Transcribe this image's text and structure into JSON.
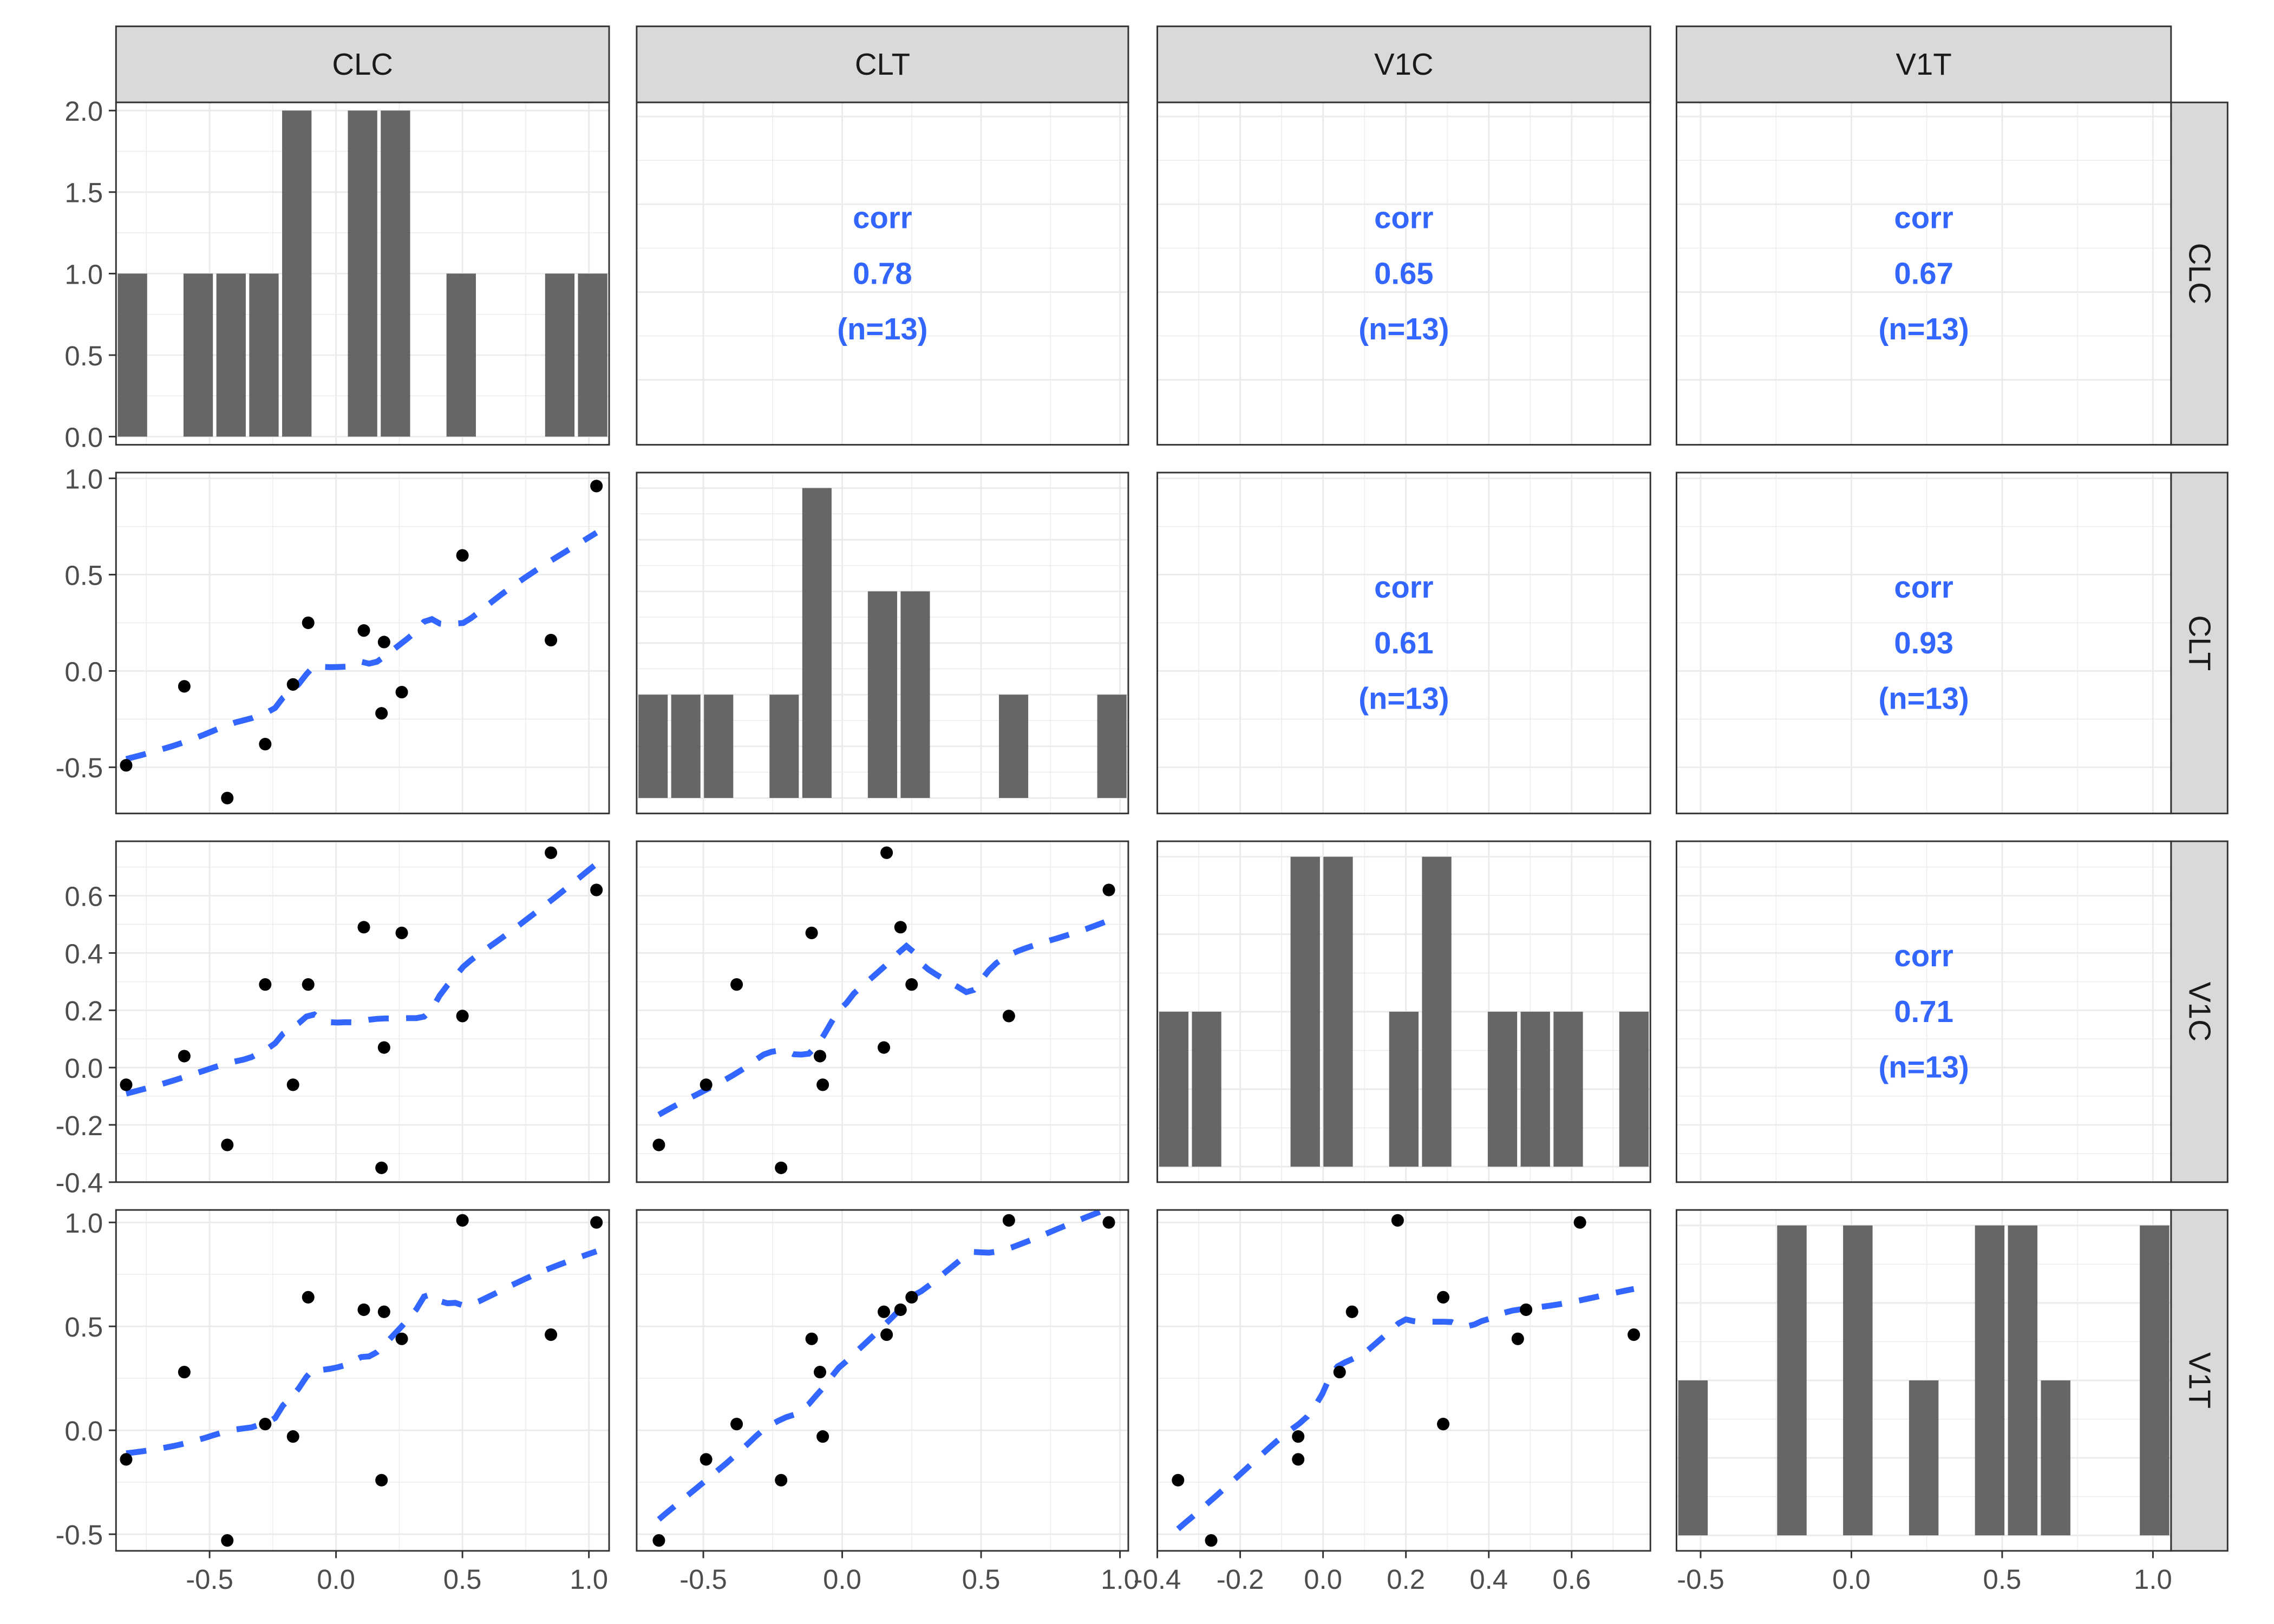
{
  "chart_data": {
    "type": "scatter",
    "title": "",
    "layout": "pairs-matrix",
    "variables": [
      "CLC",
      "CLT",
      "V1C",
      "V1T"
    ],
    "observations": {
      "CLC": [
        -0.83,
        -0.6,
        -0.43,
        -0.28,
        -0.17,
        -0.11,
        0.11,
        0.18,
        0.19,
        0.26,
        0.5,
        0.85,
        1.03
      ],
      "CLT": [
        -0.49,
        -0.08,
        -0.66,
        -0.38,
        -0.07,
        0.25,
        0.21,
        -0.22,
        0.15,
        -0.11,
        0.6,
        0.16,
        0.96
      ],
      "V1C": [
        -0.06,
        0.04,
        -0.27,
        0.29,
        -0.06,
        0.29,
        0.49,
        -0.35,
        0.07,
        0.47,
        0.18,
        0.75,
        0.62
      ],
      "V1T": [
        -0.14,
        0.28,
        -0.53,
        0.03,
        -0.03,
        0.64,
        0.58,
        -0.24,
        0.57,
        0.44,
        1.01,
        0.46,
        1.0
      ]
    },
    "axis_ranges": {
      "CLC": [
        -0.87,
        1.08
      ],
      "CLT": [
        -0.74,
        1.03
      ],
      "V1C": [
        -0.4,
        0.79
      ],
      "V1T": [
        -0.58,
        1.06
      ]
    },
    "x_tick_labels": {
      "CLC": [
        "-0.5",
        "0.0",
        "0.5",
        "1.0"
      ],
      "CLT": [
        "-0.5",
        "0.0",
        "0.5",
        "1.0"
      ],
      "V1C": [
        "-0.4",
        "-0.2",
        "0.0",
        "0.2",
        "0.4",
        "0.6"
      ],
      "V1T": [
        "-0.5",
        "0.0",
        "0.5",
        "1.0"
      ]
    },
    "x_ticks": {
      "CLC": [
        -0.5,
        0.0,
        0.5,
        1.0
      ],
      "CLT": [
        -0.5,
        0.0,
        0.5,
        1.0
      ],
      "V1C": [
        -0.4,
        -0.2,
        0.0,
        0.2,
        0.4,
        0.6
      ],
      "V1T": [
        -0.5,
        0.0,
        0.5,
        1.0
      ]
    },
    "y_axis_left": [
      {
        "row": "CLC",
        "range": [
          -0.05,
          2.05
        ],
        "ticks": [
          0.0,
          0.5,
          1.0,
          1.5,
          2.0
        ],
        "labels": [
          "0.0",
          "0.5",
          "1.0",
          "1.5",
          "2.0"
        ]
      },
      {
        "row": "CLT",
        "ticks": [
          -0.5,
          0.0,
          0.5,
          1.0
        ],
        "labels": [
          "-0.5",
          "0.0",
          "0.5",
          "1.0"
        ]
      },
      {
        "row": "V1C",
        "ticks": [
          -0.4,
          -0.2,
          0.0,
          0.2,
          0.4,
          0.6
        ],
        "labels": [
          "-0.4",
          "-0.2",
          "0.0",
          "0.2",
          "0.4",
          "0.6"
        ]
      },
      {
        "row": "V1T",
        "ticks": [
          -0.5,
          0.0,
          0.5,
          1.0
        ],
        "labels": [
          "-0.5",
          "0.0",
          "0.5",
          "1.0"
        ]
      }
    ],
    "histograms": {
      "CLC": {
        "bins_range": [
          -0.87,
          1.08
        ],
        "counts": [
          1,
          0,
          1,
          1,
          1,
          2,
          0,
          2,
          2,
          0,
          1,
          0,
          0,
          1,
          1
        ]
      },
      "CLT": {
        "bins_range": [
          -0.74,
          1.03
        ],
        "counts": [
          1,
          1,
          1,
          0,
          1,
          3,
          0,
          2,
          2,
          0,
          0,
          1,
          0,
          0,
          1
        ],
        "max_count": 3
      },
      "V1C": {
        "bins_range": [
          -0.4,
          0.79
        ],
        "counts": [
          1,
          1,
          0,
          0,
          2,
          2,
          0,
          1,
          2,
          0,
          1,
          1,
          1,
          0,
          1
        ],
        "max_count": 2
      },
      "V1T": {
        "bins_range": [
          -0.58,
          1.06
        ],
        "counts": [
          1,
          0,
          0,
          2,
          0,
          2,
          0,
          1,
          0,
          2,
          2,
          1,
          0,
          0,
          2
        ],
        "max_count": 2
      }
    },
    "correlations": [
      {
        "row": "CLC",
        "col": "CLT",
        "label": "corr",
        "value": "0.78",
        "n": "(n=13)"
      },
      {
        "row": "CLC",
        "col": "V1C",
        "label": "corr",
        "value": "0.65",
        "n": "(n=13)"
      },
      {
        "row": "CLC",
        "col": "V1T",
        "label": "corr",
        "value": "0.67",
        "n": "(n=13)"
      },
      {
        "row": "CLT",
        "col": "V1C",
        "label": "corr",
        "value": "0.61",
        "n": "(n=13)"
      },
      {
        "row": "CLT",
        "col": "V1T",
        "label": "corr",
        "value": "0.93",
        "n": "(n=13)"
      },
      {
        "row": "V1C",
        "col": "V1T",
        "label": "corr",
        "value": "0.71",
        "n": "(n=13)"
      }
    ],
    "smooth": "loess (dashed)",
    "colors": {
      "bar": "#595959",
      "point": "#000000",
      "smooth": "#3366ff",
      "corr_text": "#3366ff",
      "strip_bg": "#d9d9d9",
      "grid": "#ebebeb"
    },
    "grid": true,
    "legend": "none"
  }
}
